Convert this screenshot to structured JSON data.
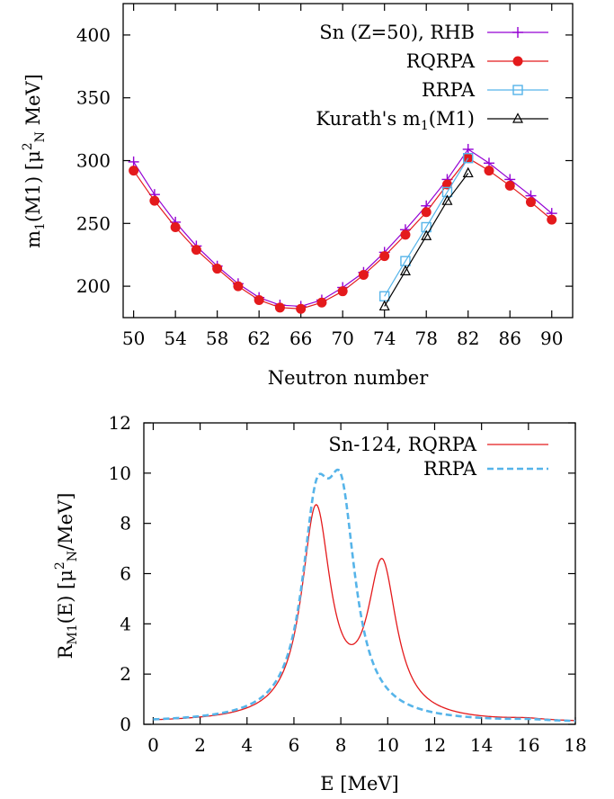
{
  "chart_data": [
    {
      "type": "line",
      "xlabel": "Neutron number",
      "ylabel": "m1(M1)  [μ2N MeV]",
      "xlim": [
        49,
        92
      ],
      "ylim": [
        175,
        425
      ],
      "x_ticks": [
        "50",
        "54",
        "58",
        "62",
        "66",
        "70",
        "74",
        "78",
        "82",
        "86",
        "90"
      ],
      "y_ticks": [
        "200",
        "250",
        "300",
        "350",
        "400"
      ],
      "legend_position": "top-right",
      "series": [
        {
          "name": "Sn (Z=50), RHB",
          "color": "#9400d3",
          "marker": "plus",
          "x": [
            50,
            52,
            54,
            56,
            58,
            60,
            62,
            64,
            66,
            68,
            70,
            72,
            74,
            76,
            78,
            80,
            82,
            84,
            86,
            88,
            90
          ],
          "y": [
            299,
            273,
            251,
            232,
            216,
            202,
            191,
            185,
            184,
            189,
            199,
            211,
            227,
            245,
            264,
            285,
            309,
            298,
            285,
            272,
            258
          ]
        },
        {
          "name": "RQRPA",
          "color": "#e41a1c",
          "marker": "circle",
          "x": [
            50,
            52,
            54,
            56,
            58,
            60,
            62,
            64,
            66,
            68,
            70,
            72,
            74,
            76,
            78,
            80,
            82,
            84,
            86,
            88,
            90
          ],
          "y": [
            292,
            268,
            247,
            229,
            214,
            200,
            189,
            183,
            182,
            187,
            196,
            209,
            224,
            241,
            259,
            281,
            302,
            292,
            280,
            267,
            253
          ]
        },
        {
          "name": "RRPA",
          "color": "#56b4e9",
          "marker": "square",
          "x": [
            74,
            76,
            78,
            80,
            82
          ],
          "y": [
            192,
            220,
            247,
            275,
            302
          ]
        },
        {
          "name": "Kurath's m1(M1)",
          "color": "#000000",
          "marker": "triangle",
          "x": [
            74,
            76,
            78,
            80,
            82
          ],
          "y": [
            184,
            212,
            240,
            268,
            290
          ]
        }
      ]
    },
    {
      "type": "line",
      "xlabel": "E  [MeV]",
      "ylabel": "RM1(E)  [μ2N/MeV]",
      "xlim": [
        -0.4,
        18
      ],
      "ylim": [
        0,
        12
      ],
      "x_ticks": [
        "0",
        "2",
        "4",
        "6",
        "8",
        "10",
        "12",
        "14",
        "16",
        "18"
      ],
      "y_ticks": [
        "0",
        "2",
        "4",
        "6",
        "8",
        "10",
        "12"
      ],
      "legend_position": "top-right",
      "series": [
        {
          "name": "Sn-124, RQRPA",
          "color": "#e41a1c",
          "dash": "solid",
          "peaks": [
            {
              "E": 6.94,
              "height": 8.3,
              "gamma": 0.75
            },
            {
              "E": 9.76,
              "height": 6.0,
              "gamma": 0.75
            },
            {
              "E": 15.9,
              "height": 0.07,
              "gamma": 1.0
            }
          ]
        },
        {
          "name": "RRPA",
          "color": "#56b4e9",
          "dash": "dashed",
          "peaks": [
            {
              "E": 6.95,
              "height": 7.2,
              "gamma": 0.75
            },
            {
              "E": 8.02,
              "height": 7.5,
              "gamma": 0.75
            },
            {
              "E": 16.0,
              "height": 0.05,
              "gamma": 1.0
            }
          ]
        }
      ]
    }
  ]
}
